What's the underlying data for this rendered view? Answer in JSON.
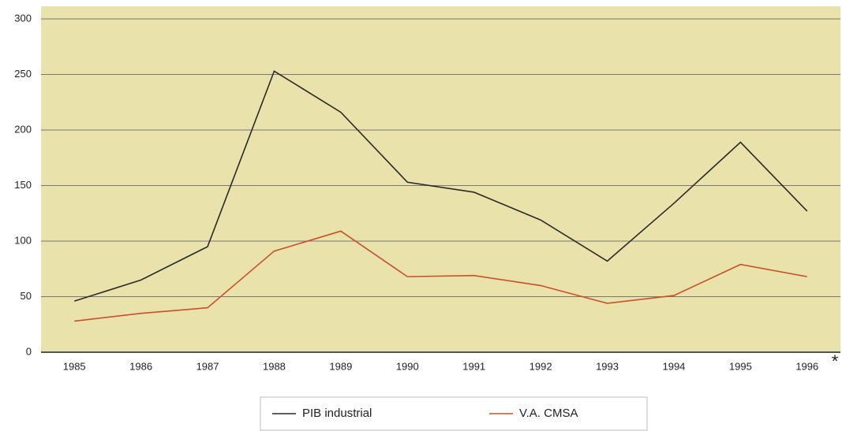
{
  "chart_data": {
    "type": "line",
    "categories": [
      "1985",
      "1986",
      "1987",
      "1988",
      "1989",
      "1990",
      "1991",
      "1992",
      "1993",
      "1994",
      "1995",
      "1996"
    ],
    "series": [
      {
        "name": "PIB industrial",
        "color": "#2a2a2a",
        "values": [
          46,
          65,
          95,
          253,
          216,
          153,
          144,
          119,
          82,
          134,
          189,
          127
        ]
      },
      {
        "name": "V.A. CMSA",
        "color": "#c8502a",
        "values": [
          28,
          35,
          40,
          91,
          109,
          68,
          69,
          60,
          44,
          51,
          79,
          68
        ]
      }
    ],
    "annotation": "*",
    "ylim": [
      0,
      300
    ],
    "yticks": [
      0,
      50,
      100,
      150,
      200,
      250,
      300
    ],
    "grid": true
  }
}
